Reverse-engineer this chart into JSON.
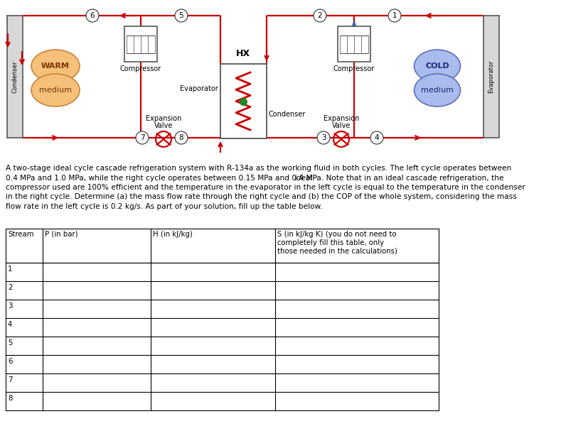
{
  "bg_color": "#ffffff",
  "line_color": "#cc0000",
  "warm_color_fill": "#f5c07a",
  "warm_color_edge": "#c8843a",
  "warm_text_color": "#7a3500",
  "cold_color_fill": "#aabbee",
  "cold_color_edge": "#6070b8",
  "cold_text_color": "#1a2870",
  "comp_fill": "#ffffff",
  "comp_edge": "#555555",
  "box_fill": "#d8d8d8",
  "box_edge": "#555555",
  "hx_fill": "#ffffff",
  "hx_edge": "#555555",
  "zigzag_color": "#cc0000",
  "green_dot": "#228822",
  "blue_arrow": "#3366cc",
  "paragraph_line1": "A two-stage ideal cycle cascade refrigeration system with R-134a as the working fluid in both cycles. The left cycle operates between",
  "paragraph_line2": "0.4 MPa and 1.0 MPa, while the right cycle operates between 0.15 MPa and 0.4 MPa. Note that in an ",
  "paragraph_italic": "ideal",
  "paragraph_line2b": " cascade refrigeration, the",
  "paragraph_line3": "compressor used are 100% efficient and the temperature in the evaporator in the left cycle is equal to the temperature in the condenser",
  "paragraph_line4": "in the right cycle. Determine (a) the mass flow rate through the right cycle and (b) the COP of the whole system, considering the mass",
  "paragraph_line5": "flow rate in the left cycle is 0.2 kg/s. As part of your solution, fill up the table below.",
  "table_col_headers": [
    "Stream",
    "P (in bar)",
    "H (in kJ/kg)",
    "S (in kJ/kg·K) (you do not need to\ncompletely fill this table, only\nthose needed in the calculations)"
  ],
  "table_rows": [
    "1",
    "2",
    "3",
    "4",
    "5",
    "6",
    "7",
    "8"
  ]
}
